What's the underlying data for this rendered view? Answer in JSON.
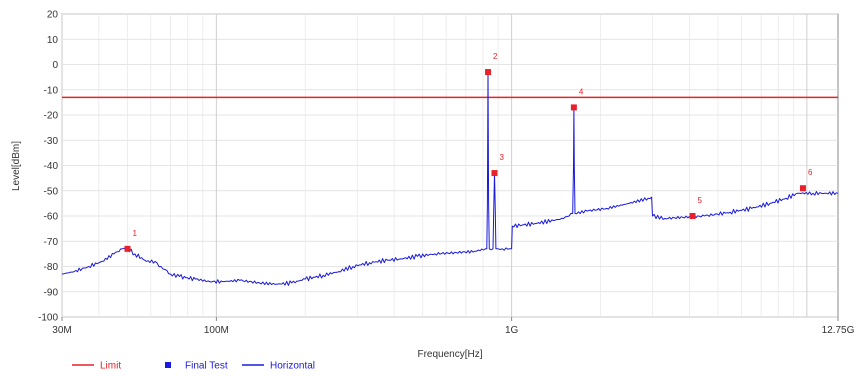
{
  "chart_data": {
    "type": "line",
    "x_scale": "log",
    "xlabel": "Frequency[Hz]",
    "ylabel": "Level[dBm]",
    "ylim": [
      -100,
      20
    ],
    "xlim_hz": [
      30000000,
      12750000000
    ],
    "y_ticks": [
      20,
      10,
      0,
      -10,
      -20,
      -30,
      -40,
      -50,
      -60,
      -70,
      -80,
      -90,
      -100
    ],
    "x_ticks": [
      {
        "hz": 30000000,
        "label": "30M"
      },
      {
        "hz": 100000000,
        "label": "100M"
      },
      {
        "hz": 1000000000,
        "label": "1G"
      },
      {
        "hz": 12750000000,
        "label": "12.75G"
      }
    ],
    "grid": true,
    "legend_position": "bottom-left",
    "legend": [
      {
        "name": "Limit",
        "color": "#e8212a",
        "style": "line"
      },
      {
        "name": "Final Test",
        "color": "#1a1adc",
        "style": "marker"
      },
      {
        "name": "Horizontal",
        "color": "#1a1adc",
        "style": "line"
      }
    ],
    "limit": {
      "name": "Limit",
      "value": -13,
      "color": "#e8212a"
    },
    "series": [
      {
        "name": "Horizontal",
        "color": "#1a1adc",
        "points": [
          [
            30000000,
            -83
          ],
          [
            33000000,
            -82
          ],
          [
            37000000,
            -80
          ],
          [
            41000000,
            -78
          ],
          [
            45000000,
            -75
          ],
          [
            48000000,
            -73
          ],
          [
            50000000,
            -73
          ],
          [
            53000000,
            -75
          ],
          [
            58000000,
            -78
          ],
          [
            62000000,
            -78
          ],
          [
            65000000,
            -80
          ],
          [
            70000000,
            -83
          ],
          [
            75000000,
            -84
          ],
          [
            85000000,
            -85
          ],
          [
            95000000,
            -86
          ],
          [
            105000000,
            -86
          ],
          [
            120000000,
            -85.5
          ],
          [
            140000000,
            -86.5
          ],
          [
            160000000,
            -87
          ],
          [
            180000000,
            -86.5
          ],
          [
            200000000,
            -85
          ],
          [
            230000000,
            -83.5
          ],
          [
            260000000,
            -82
          ],
          [
            290000000,
            -80
          ],
          [
            330000000,
            -78.5
          ],
          [
            380000000,
            -77.5
          ],
          [
            420000000,
            -77
          ],
          [
            480000000,
            -76
          ],
          [
            550000000,
            -75
          ],
          [
            650000000,
            -74.5
          ],
          [
            750000000,
            -74
          ],
          [
            815000000,
            -73
          ],
          [
            824000000,
            -73
          ],
          [
            828000000,
            -55
          ],
          [
            832000000,
            -2
          ],
          [
            836000000,
            -55
          ],
          [
            840000000,
            -73
          ],
          [
            865000000,
            -73
          ],
          [
            870000000,
            -56
          ],
          [
            875000000,
            -43
          ],
          [
            880000000,
            -56
          ],
          [
            885000000,
            -73
          ],
          [
            930000000,
            -73
          ],
          [
            985000000,
            -73
          ],
          [
            1000000000,
            -73
          ],
          [
            1005000000,
            -64
          ],
          [
            1200000000,
            -63
          ],
          [
            1500000000,
            -61
          ],
          [
            1610000000,
            -59
          ],
          [
            1620000000,
            -40
          ],
          [
            1625000000,
            -17
          ],
          [
            1630000000,
            -40
          ],
          [
            1640000000,
            -59
          ],
          [
            1800000000,
            -58
          ],
          [
            2100000000,
            -57
          ],
          [
            2500000000,
            -55
          ],
          [
            2900000000,
            -53
          ],
          [
            2980000000,
            -52.5
          ],
          [
            3000000000,
            -60
          ],
          [
            3300000000,
            -61
          ],
          [
            3800000000,
            -60.5
          ],
          [
            4500000000,
            -60
          ],
          [
            5500000000,
            -58.5
          ],
          [
            6500000000,
            -57
          ],
          [
            7500000000,
            -55
          ],
          [
            8500000000,
            -53
          ],
          [
            9300000000,
            -51
          ],
          [
            10500000000,
            -51
          ],
          [
            11500000000,
            -51
          ],
          [
            12750000000,
            -51
          ]
        ]
      }
    ],
    "final_test": {
      "name": "Final Test",
      "color": "#e8212a",
      "points": [
        {
          "label": "1",
          "hz": 50000000,
          "level": -73
        },
        {
          "label": "2",
          "hz": 832000000,
          "level": -3
        },
        {
          "label": "3",
          "hz": 875000000,
          "level": -43
        },
        {
          "label": "4",
          "hz": 1625000000,
          "level": -17
        },
        {
          "label": "5",
          "hz": 4100000000,
          "level": -60
        },
        {
          "label": "6",
          "hz": 9700000000,
          "level": -49
        }
      ]
    }
  }
}
